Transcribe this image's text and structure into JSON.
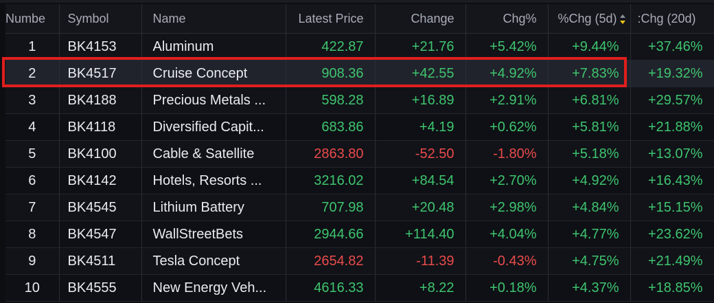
{
  "columns": {
    "number": "Numbe",
    "symbol": "Symbol",
    "name": "Name",
    "price": "Latest Price",
    "change": "Change",
    "chg_pct": "Chg%",
    "chg_5d": "%Chg (5d)",
    "chg_20d": ":Chg (20d)"
  },
  "sort_indicator": "sort-desc-icon",
  "colors": {
    "positive": "#3fc46f",
    "negative": "#ea4b4b",
    "highlight_border": "#e01e1e",
    "sort_active": "#f0c419"
  },
  "rows": [
    {
      "number": "1",
      "symbol": "BK4153",
      "name": "Aluminum",
      "price": "422.87",
      "change": "+21.76",
      "chg_pct": "+5.42%",
      "chg_5d": "+9.44%",
      "chg_20d": "+37.46%",
      "direction": "up",
      "chg20_direction": "up"
    },
    {
      "number": "2",
      "symbol": "BK4517",
      "name": "Cruise Concept",
      "price": "908.36",
      "change": "+42.55",
      "chg_pct": "+4.92%",
      "chg_5d": "+7.83%",
      "chg_20d": "+19.32%",
      "direction": "up",
      "chg20_direction": "up"
    },
    {
      "number": "3",
      "symbol": "BK4188",
      "name": "Precious Metals ...",
      "price": "598.28",
      "change": "+16.89",
      "chg_pct": "+2.91%",
      "chg_5d": "+6.81%",
      "chg_20d": "+29.57%",
      "direction": "up",
      "chg20_direction": "up"
    },
    {
      "number": "4",
      "symbol": "BK4118",
      "name": "Diversified Capit...",
      "price": "683.86",
      "change": "+4.19",
      "chg_pct": "+0.62%",
      "chg_5d": "+5.81%",
      "chg_20d": "+21.88%",
      "direction": "up",
      "chg20_direction": "up"
    },
    {
      "number": "5",
      "symbol": "BK4100",
      "name": "Cable & Satellite",
      "price": "2863.80",
      "change": "-52.50",
      "chg_pct": "-1.80%",
      "chg_5d": "+5.18%",
      "chg_20d": "+13.07%",
      "direction": "down",
      "chg20_direction": "up"
    },
    {
      "number": "6",
      "symbol": "BK4142",
      "name": "Hotels, Resorts ...",
      "price": "3216.02",
      "change": "+84.54",
      "chg_pct": "+2.70%",
      "chg_5d": "+4.92%",
      "chg_20d": "+16.43%",
      "direction": "up",
      "chg20_direction": "up"
    },
    {
      "number": "7",
      "symbol": "BK4545",
      "name": "Lithium Battery",
      "price": "707.98",
      "change": "+20.48",
      "chg_pct": "+2.98%",
      "chg_5d": "+4.84%",
      "chg_20d": "+15.15%",
      "direction": "up",
      "chg20_direction": "up"
    },
    {
      "number": "8",
      "symbol": "BK4547",
      "name": "WallStreetBets",
      "price": "2944.66",
      "change": "+114.40",
      "chg_pct": "+4.04%",
      "chg_5d": "+4.77%",
      "chg_20d": "+23.62%",
      "direction": "up",
      "chg20_direction": "up"
    },
    {
      "number": "9",
      "symbol": "BK4511",
      "name": "Tesla Concept",
      "price": "2654.82",
      "change": "-11.39",
      "chg_pct": "-0.43%",
      "chg_5d": "+4.75%",
      "chg_20d": "+21.49%",
      "direction": "down",
      "chg20_direction": "up"
    },
    {
      "number": "10",
      "symbol": "BK4555",
      "name": "New Energy Veh...",
      "price": "4616.33",
      "change": "+8.22",
      "chg_pct": "+0.18%",
      "chg_5d": "+4.37%",
      "chg_20d": "+18.85%",
      "direction": "up",
      "chg20_direction": "up"
    }
  ],
  "highlighted_row": 2
}
